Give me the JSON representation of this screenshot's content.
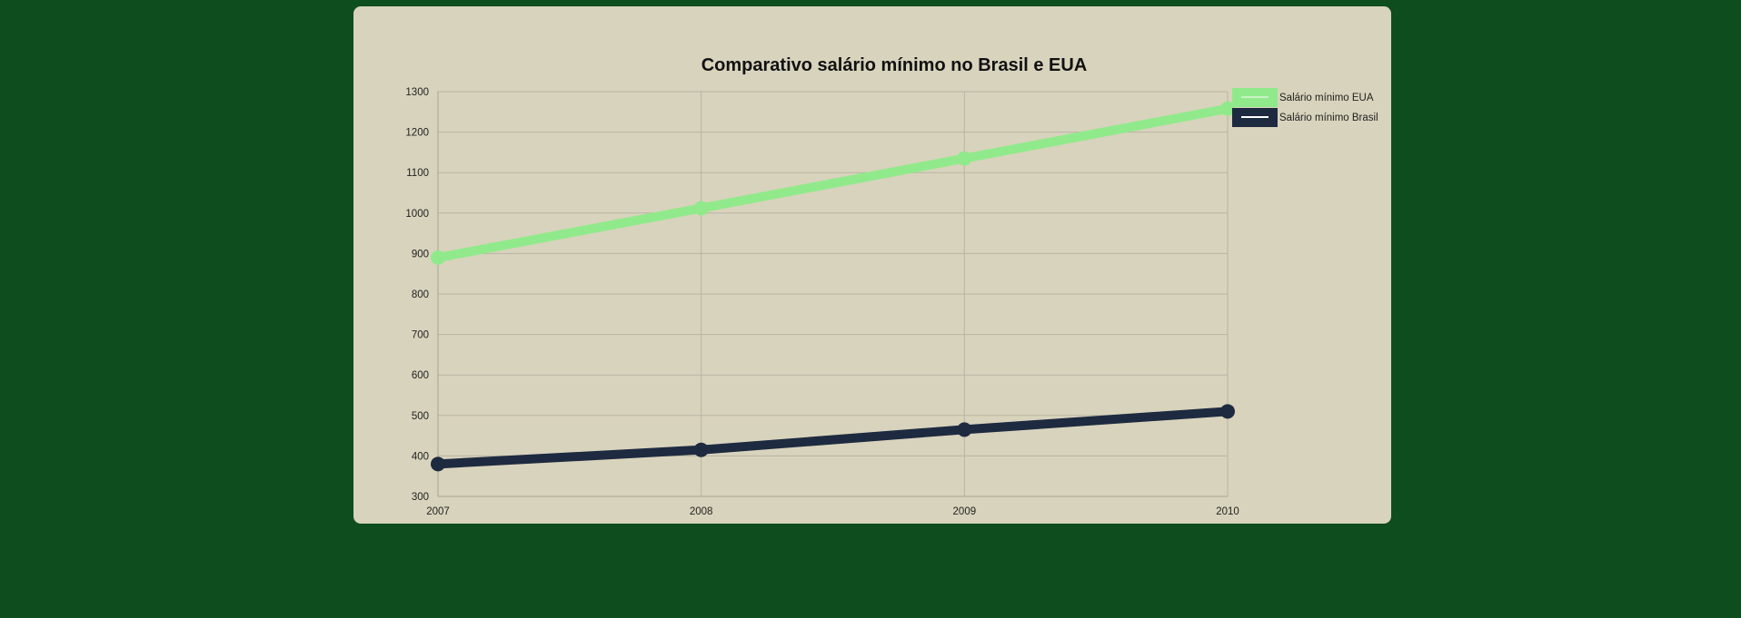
{
  "chart_data": {
    "type": "line",
    "title": "Comparativo salário mínimo no Brasil e EUA",
    "xlabel": "",
    "ylabel": "",
    "categories": [
      "2007",
      "2008",
      "2009",
      "2010"
    ],
    "ylim": [
      300,
      1300
    ],
    "yticks": [
      300,
      400,
      500,
      600,
      700,
      800,
      900,
      1000,
      1100,
      1200,
      1300
    ],
    "grid": true,
    "legend_position": "top-right",
    "series": [
      {
        "name": "Salário mínimo EUA",
        "values": [
          890,
          1012,
          1135,
          1258
        ],
        "color": "#90ea8b"
      },
      {
        "name": "Salário mínimo Brasil",
        "values": [
          380,
          415,
          465,
          510
        ],
        "color": "#1e2a40"
      }
    ]
  },
  "colors": {
    "page_background": "#0e4d1e",
    "card_background": "#d8d3bc"
  }
}
